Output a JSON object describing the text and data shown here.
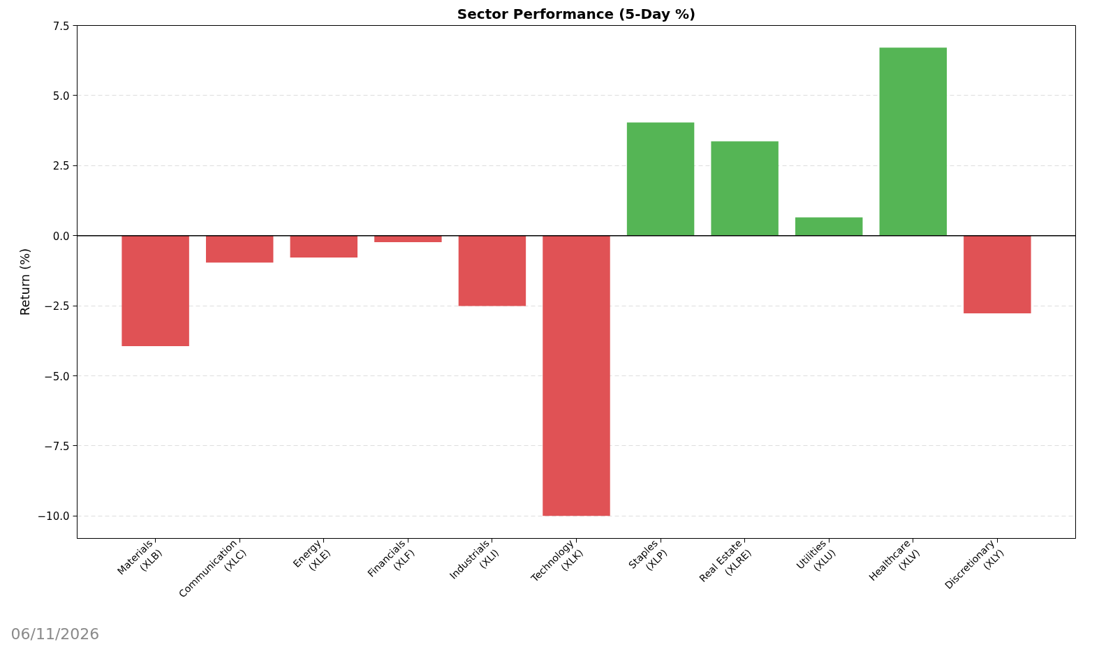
{
  "chart_data": {
    "type": "bar",
    "title": "Sector Performance (5-Day %)",
    "ylabel": "Return (%)",
    "categories": [
      "Materials\n(XLB)",
      "Communication\n(XLC)",
      "Energy\n(XLE)",
      "Financials\n(XLF)",
      "Industrials\n(XLI)",
      "Technology\n(XLK)",
      "Staples\n(XLP)",
      "Real Estate\n(XLRE)",
      "Utilities\n(XLU)",
      "Healthcare\n(XLV)",
      "Discretionary\n(XLY)"
    ],
    "values": [
      -3.94,
      -0.96,
      -0.78,
      -0.23,
      -2.51,
      -10.0,
      4.04,
      3.37,
      0.65,
      6.71,
      -2.77
    ],
    "colors": [
      "#e05255",
      "#e05255",
      "#e05255",
      "#e05255",
      "#e05255",
      "#e05255",
      "#55b555",
      "#55b555",
      "#55b555",
      "#55b555",
      "#e05255"
    ],
    "ylim": [
      -10.8,
      7.5
    ],
    "yticks": [
      {
        "value": -10,
        "label": "−10.0"
      },
      {
        "value": -7.5,
        "label": "−7.5"
      },
      {
        "value": -5,
        "label": "−5.0"
      },
      {
        "value": -2.5,
        "label": "−2.5"
      },
      {
        "value": 0,
        "label": "0.0"
      },
      2.5,
      {
        "value": 5,
        "label": "5.0"
      },
      7.5
    ],
    "grid": "y",
    "ref_lines": [
      {
        "axis": "y",
        "value": 0,
        "color": "#000000"
      }
    ],
    "annotations": [
      "06/11/2026"
    ]
  }
}
